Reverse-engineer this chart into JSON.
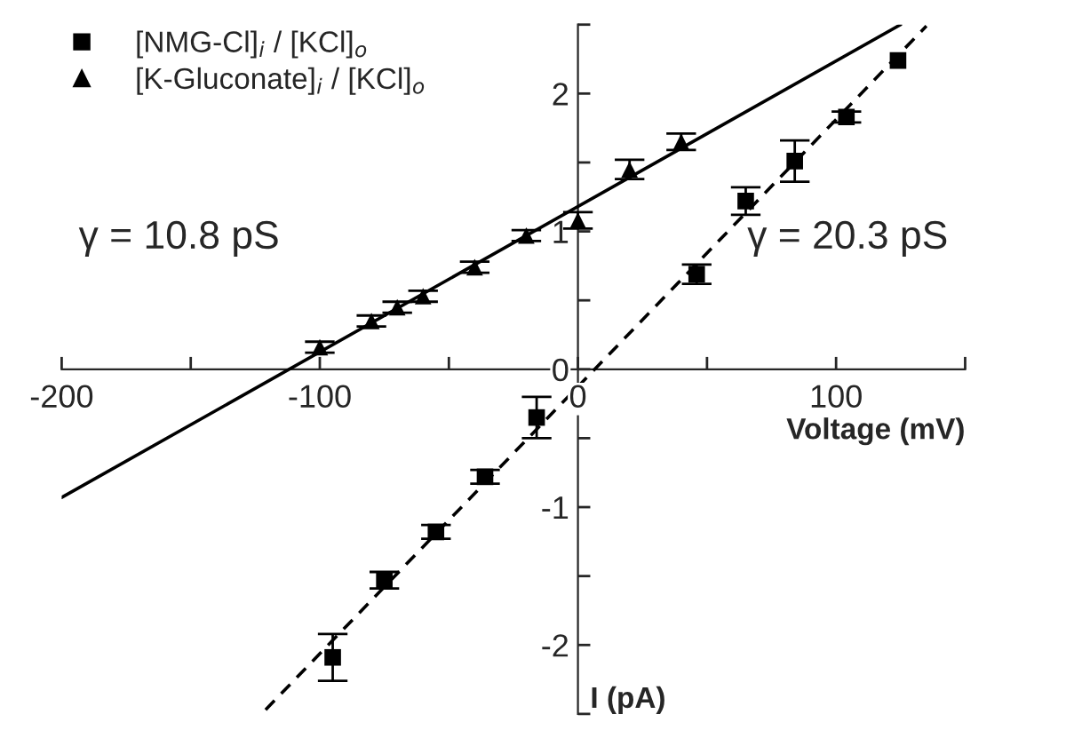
{
  "chart_data": {
    "type": "scatter",
    "xlabel": "Voltage (mV)",
    "ylabel": "I (pA)",
    "xlim": [
      -200,
      150
    ],
    "ylim": [
      -2.5,
      2.5
    ],
    "xticks": [
      -200,
      {
        "value": -150,
        "label": null
      },
      -100,
      {
        "value": -50,
        "label": null
      },
      0,
      {
        "value": 50,
        "label": null
      },
      100,
      {
        "value": 150,
        "label": null
      }
    ],
    "yticks": [
      {
        "value": -2.5,
        "label": null
      },
      -2,
      {
        "value": -1.5,
        "label": null
      },
      -1,
      {
        "value": -0.5,
        "label": null
      },
      0,
      {
        "value": 0.5,
        "label": null
      },
      1,
      {
        "value": 1.5,
        "label": null
      },
      2,
      {
        "value": 2.5,
        "label": null
      }
    ],
    "legend": "top left",
    "grid": false,
    "annotations": [
      "γ = 10.8 pS",
      "γ = 20.3 pS"
    ],
    "series": [
      {
        "name": "[NMG-Cl]$_{i}$ / [KCl]$_{o}$",
        "marker": "square",
        "color": "#000000",
        "x": [
          -95,
          -75,
          -55,
          -36,
          -16,
          46,
          65,
          84,
          104,
          124
        ],
        "values": [
          -2.09,
          -1.53,
          -1.18,
          -0.78,
          -0.35,
          0.69,
          1.22,
          1.51,
          1.83,
          2.24
        ],
        "errors": [
          0.17,
          0.06,
          0.05,
          0.05,
          0.15,
          0.07,
          0.1,
          0.15,
          0.04,
          null
        ]
      },
      {
        "name": "[K-Gluconate]$_{i}$ / [KCl]$_{o}$",
        "marker": "triangle",
        "color": "#000000",
        "x": [
          -100,
          -80,
          -70,
          -60,
          -40,
          -20,
          0,
          20,
          40
        ],
        "values": [
          0.16,
          0.35,
          0.45,
          0.53,
          0.74,
          0.97,
          1.08,
          1.45,
          1.65
        ],
        "errors": [
          0.04,
          0.04,
          0.04,
          0.04,
          0.04,
          0.04,
          0.06,
          0.07,
          0.06
        ]
      },
      {
        "type": "line",
        "line_style": "solid",
        "marker": "none",
        "color": "#000000",
        "x": [
          -200,
          125
        ],
        "values": [
          -0.93,
          2.5
        ]
      },
      {
        "type": "line",
        "line_style": "dashed",
        "marker": "none",
        "color": "#000000",
        "x": [
          -121,
          135
        ],
        "values": [
          -2.47,
          2.49
        ]
      }
    ]
  }
}
